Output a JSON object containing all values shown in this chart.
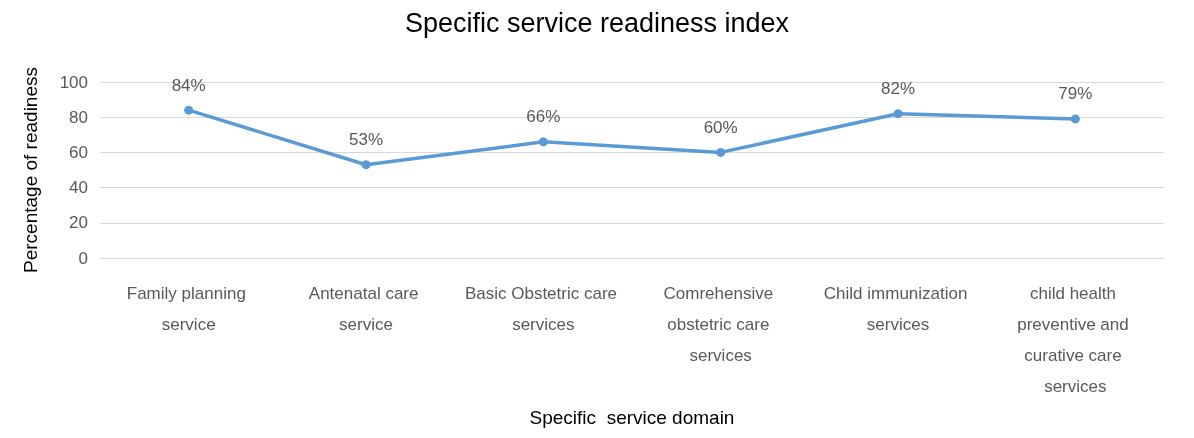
{
  "chart_data": {
    "type": "line",
    "title": "Specific service readiness index",
    "xlabel": "Specific  service domain",
    "ylabel": "Percentage of readiness",
    "categories": [
      "Family planning service",
      "Antenatal care service",
      "Basic Obstetric care services",
      "Comrehensive obstetric care services",
      "Child immunization services",
      "child health preventive and curative care services"
    ],
    "series": [
      {
        "color": "#5b9bd5",
        "values": [
          84,
          53,
          66,
          60,
          82,
          79
        ],
        "value_labels": [
          "84%",
          "53%",
          "66%",
          "60%",
          "82%",
          "79%"
        ]
      }
    ],
    "ylim": [
      0,
      100
    ],
    "yticks": [
      0,
      20,
      40,
      60,
      80,
      100
    ],
    "grid": "y",
    "marker": "circle",
    "line_style": "solid"
  }
}
